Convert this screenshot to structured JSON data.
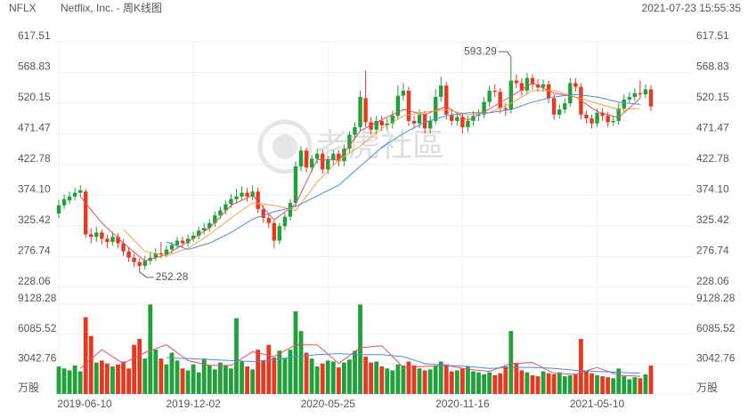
{
  "header": {
    "ticker": "NFLX",
    "name": "Netflix, Inc. - 周K线图",
    "datetime": "2021-07-23 15:55:35"
  },
  "watermark": "老虎社區",
  "chart_data": {
    "type": "candlestick",
    "categories": [
      "2019-06-10",
      null,
      null,
      null,
      null,
      null,
      null,
      null,
      null,
      null,
      null,
      null,
      null,
      null,
      null,
      null,
      null,
      null,
      null,
      null,
      null,
      null,
      null,
      null,
      null,
      "2019-12-02",
      null,
      null,
      null,
      null,
      null,
      null,
      null,
      null,
      null,
      null,
      null,
      null,
      null,
      null,
      null,
      null,
      null,
      null,
      null,
      null,
      null,
      null,
      null,
      null,
      "2020-05-25",
      null,
      null,
      null,
      null,
      null,
      null,
      null,
      null,
      null,
      null,
      null,
      null,
      null,
      null,
      null,
      null,
      null,
      null,
      null,
      null,
      null,
      null,
      null,
      null,
      "2020-11-16",
      null,
      null,
      null,
      null,
      null,
      null,
      null,
      null,
      null,
      null,
      null,
      null,
      null,
      null,
      null,
      null,
      null,
      null,
      null,
      null,
      null,
      null,
      null,
      null,
      "2021-05-10",
      null,
      null,
      null,
      null,
      null,
      null,
      null,
      null,
      null,
      null
    ],
    "open": [
      345,
      358,
      366,
      372,
      378,
      380,
      312,
      308,
      315,
      305,
      300,
      308,
      298,
      285,
      275,
      268,
      262,
      270,
      275,
      282,
      280,
      288,
      295,
      302,
      298,
      305,
      310,
      318,
      322,
      330,
      342,
      350,
      360,
      368,
      372,
      378,
      372,
      380,
      352,
      338,
      330,
      302,
      325,
      340,
      362,
      420,
      445,
      418,
      432,
      440,
      415,
      430,
      440,
      428,
      448,
      470,
      482,
      528,
      490,
      478,
      492,
      485,
      488,
      500,
      532,
      540,
      492,
      488,
      502,
      480,
      492,
      530,
      548,
      502,
      492,
      498,
      482,
      492,
      500,
      502,
      522,
      540,
      538,
      512,
      510,
      556,
      552,
      540,
      560,
      550,
      545,
      550,
      528,
      502,
      510,
      520,
      552,
      546,
      502,
      496,
      488,
      505,
      500,
      490,
      492,
      512,
      526,
      530,
      536,
      534,
      542
    ],
    "high": [
      366,
      375,
      380,
      386,
      390,
      384,
      322,
      324,
      320,
      312,
      316,
      314,
      304,
      292,
      282,
      274,
      278,
      284,
      290,
      300,
      294,
      300,
      308,
      308,
      312,
      316,
      324,
      330,
      336,
      348,
      356,
      366,
      376,
      384,
      388,
      386,
      390,
      386,
      358,
      344,
      334,
      330,
      346,
      368,
      428,
      452,
      450,
      438,
      448,
      446,
      436,
      446,
      446,
      454,
      476,
      490,
      540,
      572,
      498,
      500,
      500,
      496,
      508,
      548,
      552,
      546,
      500,
      510,
      508,
      500,
      542,
      562,
      554,
      510,
      506,
      504,
      500,
      508,
      510,
      530,
      548,
      550,
      544,
      520,
      593.29,
      566,
      560,
      568,
      566,
      558,
      558,
      556,
      534,
      518,
      528,
      560,
      560,
      552,
      508,
      502,
      512,
      512,
      506,
      500,
      520,
      534,
      538,
      544,
      556,
      550,
      548
    ],
    "low": [
      338,
      352,
      360,
      366,
      372,
      306,
      298,
      300,
      296,
      290,
      294,
      290,
      278,
      268,
      260,
      252.28,
      256,
      264,
      270,
      274,
      276,
      282,
      290,
      292,
      292,
      300,
      304,
      312,
      316,
      324,
      336,
      344,
      354,
      362,
      366,
      364,
      366,
      346,
      330,
      322,
      290,
      296,
      318,
      334,
      356,
      412,
      410,
      410,
      424,
      408,
      408,
      422,
      420,
      420,
      440,
      462,
      476,
      482,
      470,
      470,
      476,
      478,
      480,
      494,
      524,
      484,
      480,
      480,
      472,
      472,
      486,
      522,
      494,
      484,
      484,
      472,
      474,
      484,
      492,
      496,
      514,
      530,
      504,
      500,
      504,
      544,
      532,
      534,
      542,
      538,
      538,
      520,
      494,
      496,
      504,
      514,
      538,
      494,
      488,
      480,
      482,
      492,
      482,
      484,
      486,
      506,
      520,
      524,
      528,
      528,
      508
    ],
    "close": [
      358,
      368,
      372,
      378,
      382,
      312,
      308,
      315,
      305,
      300,
      308,
      298,
      285,
      275,
      268,
      262,
      270,
      275,
      282,
      280,
      288,
      295,
      302,
      298,
      305,
      310,
      318,
      322,
      330,
      342,
      350,
      360,
      368,
      372,
      378,
      372,
      380,
      352,
      338,
      330,
      302,
      325,
      340,
      362,
      420,
      445,
      418,
      432,
      440,
      415,
      430,
      440,
      428,
      448,
      470,
      482,
      530,
      490,
      478,
      492,
      485,
      488,
      500,
      532,
      540,
      492,
      488,
      502,
      480,
      492,
      530,
      548,
      502,
      492,
      498,
      482,
      492,
      500,
      502,
      522,
      540,
      538,
      512,
      510,
      556,
      552,
      540,
      560,
      550,
      545,
      550,
      528,
      502,
      510,
      520,
      552,
      546,
      502,
      496,
      488,
      505,
      500,
      490,
      492,
      512,
      526,
      530,
      536,
      534,
      542,
      515
    ],
    "up_color": "#22a03c",
    "down_color": "#e8381f",
    "ylim": [
      228.06,
      617.51
    ],
    "yticks": [
      228.06,
      276.74,
      325.42,
      {
        "value": 374.1,
        "label": "374.10"
      },
      422.78,
      471.47,
      520.15,
      568.83,
      617.51
    ],
    "grid": true,
    "ma": {
      "x": [
        4,
        8,
        12,
        16,
        20,
        24,
        28,
        32,
        36,
        40,
        44,
        48,
        52,
        56,
        60,
        64,
        68,
        72,
        76,
        80,
        84,
        88,
        92,
        96,
        100,
        104,
        108
      ],
      "series": [
        {
          "color": "#e05060",
          "values": [
            372,
            330,
            298,
            270,
            280,
            300,
            322,
            358,
            374,
            335,
            360,
            431,
            430,
            476,
            494,
            510,
            502,
            515,
            493,
            511,
            531,
            552,
            536,
            530,
            507,
            497,
            528
          ]
        },
        {
          "color": "#f0a040",
          "values": [
            null,
            null,
            320,
            285,
            278,
            290,
            312,
            338,
            362,
            358,
            350,
            395,
            430,
            452,
            480,
            500,
            506,
            510,
            502,
            505,
            520,
            540,
            540,
            530,
            520,
            510,
            512
          ]
        },
        {
          "color": "#4a8fd8",
          "values": [
            null,
            null,
            null,
            null,
            300,
            288,
            298,
            315,
            336,
            348,
            356,
            373,
            390,
            420,
            450,
            472,
            490,
            500,
            505,
            505,
            510,
            522,
            530,
            534,
            530,
            522,
            518
          ]
        }
      ]
    },
    "volume": [
      2800,
      2600,
      2400,
      2900,
      2300,
      7800,
      5900,
      3200,
      3400,
      3100,
      2800,
      3000,
      3300,
      2600,
      5000,
      5600,
      3600,
      9100,
      4500,
      3600,
      3000,
      4200,
      3400,
      2600,
      2400,
      3000,
      2200,
      3600,
      2900,
      2500,
      3200,
      2900,
      2600,
      7700,
      3300,
      2800,
      2500,
      4500,
      3400,
      5000,
      3700,
      4400,
      3600,
      4500,
      8400,
      6400,
      4200,
      3600,
      2800,
      3100,
      3400,
      3300,
      2700,
      3200,
      3500,
      4400,
      9100,
      3800,
      3200,
      3300,
      2800,
      2600,
      2400,
      3000,
      2900,
      3300,
      2900,
      2600,
      2400,
      2500,
      2900,
      3300,
      3000,
      2300,
      2400,
      2600,
      2800,
      2300,
      2200,
      2000,
      2200,
      1900,
      2100,
      2800,
      6400,
      3100,
      2400,
      2200,
      1900,
      1800,
      2300,
      2100,
      2000,
      2200,
      1800,
      1900,
      2000,
      5600,
      2300,
      2100,
      1900,
      1800,
      1700,
      1600,
      2600,
      1800,
      1500,
      1700,
      1600,
      2000,
      2900
    ],
    "volume_ylim": [
      0,
      9128.28
    ],
    "volume_yticks": [
      {
        "value": 0,
        "label": "万股"
      },
      3042.76,
      6085.52,
      9128.28
    ],
    "volume_ma": {
      "series": [
        {
          "color": "#e05060",
          "values": [
            2600,
            4500,
            3100,
            4200,
            5000,
            3400,
            2900,
            2900,
            4300,
            3800,
            5000,
            5000,
            3100,
            4700,
            4900,
            2700,
            2800,
            2900,
            2500,
            2300,
            3100,
            3200,
            2100,
            2000,
            2700,
            1900,
            1800
          ]
        },
        {
          "color": "#4a8fd8",
          "values": [
            null,
            null,
            null,
            null,
            3700,
            3600,
            3500,
            3400,
            3300,
            3500,
            3800,
            4000,
            4100,
            4000,
            4000,
            3800,
            3100,
            2900,
            2800,
            2600,
            2700,
            2700,
            2600,
            2400,
            2300,
            2200,
            2100
          ]
        }
      ]
    }
  }
}
